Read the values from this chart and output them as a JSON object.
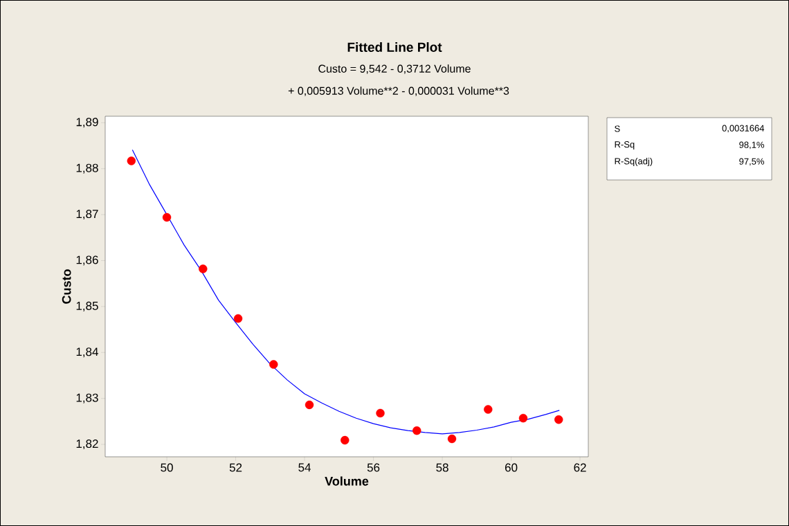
{
  "chart_data": {
    "type": "scatter",
    "title": "Fitted Line Plot",
    "subtitle": "Custo =  9,542 - 0,3712 Volume",
    "annotations": [
      "+ 0,005913 Volume**2 - 0,000031",
      "Volume**3",
      "S",
      "0,0031664",
      "R-Sq",
      "98,1%",
      "R-Sq(adj)",
      "97,5%"
    ],
    "xlabel": "Volume",
    "ylabel": "Custo",
    "series": [
      {
        "color": "#ff0000",
        "marker": "circle",
        "x": [
          48.97,
          50.0,
          51.05,
          52.07,
          53.1,
          54.14,
          55.17,
          56.2,
          57.26,
          58.28,
          59.33,
          60.35,
          61.38
        ],
        "values": [
          1.8817,
          1.8694,
          1.8582,
          1.8474,
          1.8374,
          1.8286,
          1.8209,
          1.8268,
          1.823,
          1.8212,
          1.8276,
          1.8257,
          1.8254
        ]
      },
      {
        "type": "line",
        "color": "#0000ff",
        "marker": "none",
        "x": [
          49.0,
          49.5,
          50.0,
          50.5,
          51.0,
          51.5,
          52.0,
          52.5,
          53.0,
          53.5,
          54.0,
          54.5,
          55.0,
          55.5,
          56.0,
          56.5,
          57.0,
          57.5,
          58.0,
          58.5,
          59.0,
          59.5,
          60.0,
          60.5,
          61.0,
          61.4
        ],
        "values": [
          1.8841,
          1.8765,
          1.87,
          1.8634,
          1.8578,
          1.8514,
          1.8465,
          1.8418,
          1.8375,
          1.834,
          1.831,
          1.829,
          1.8272,
          1.8257,
          1.8245,
          1.8236,
          1.823,
          1.8226,
          1.8223,
          1.8226,
          1.8231,
          1.8238,
          1.8248,
          1.8255,
          1.8265,
          1.8274
        ]
      }
    ],
    "xlim": [
      48.21,
      62.24
    ],
    "ylim": [
      1.8173,
      1.8914
    ],
    "xticks": [
      50,
      52,
      54,
      56,
      58,
      60,
      62
    ],
    "yticks": [
      {
        "value": 1.82,
        "label": "1,82"
      },
      {
        "value": 1.83,
        "label": "1,83"
      },
      {
        "value": 1.84,
        "label": "1,84"
      },
      {
        "value": 1.85,
        "label": "1,85"
      },
      {
        "value": 1.86,
        "label": "1,86"
      },
      {
        "value": 1.87,
        "label": "1,87"
      },
      {
        "value": 1.88,
        "label": "1,88"
      },
      {
        "value": 1.89,
        "label": "1,89"
      }
    ],
    "grid": false
  }
}
